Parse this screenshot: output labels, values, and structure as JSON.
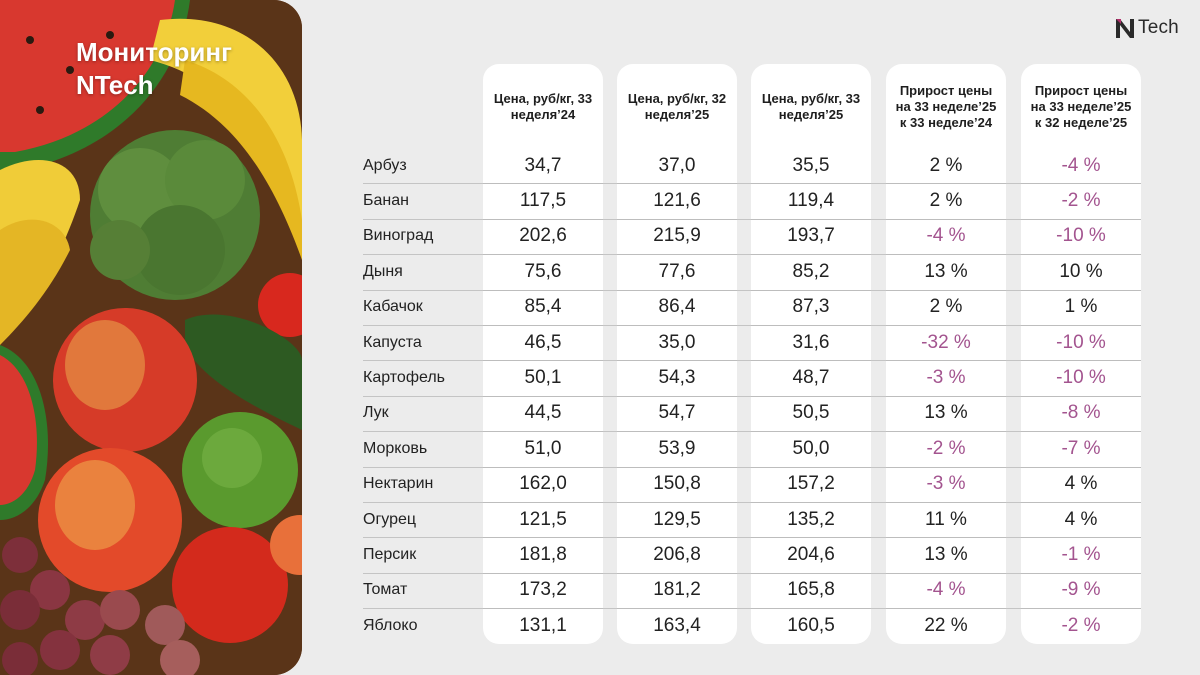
{
  "title": {
    "line1": "Мониторинг",
    "line2": "NTech"
  },
  "logo": {
    "text": "Tech"
  },
  "chart_data": {
    "type": "table",
    "columns": [
      "Цена, руб/кг, 33 неделя’24",
      "Цена, руб/кг, 32 неделя’25",
      "Цена, руб/кг, 33 неделя’25",
      "Прирост цены на 33 неделе’25 к 33 неделе’24",
      "Прирост цены на 33 неделе’25 к 32 неделе’25"
    ],
    "rows": [
      {
        "name": "Арбуз",
        "values": [
          "34,7",
          "37,0",
          "35,5",
          "2 %",
          "-4 %"
        ]
      },
      {
        "name": "Банан",
        "values": [
          "117,5",
          "121,6",
          "119,4",
          "2 %",
          "-2 %"
        ]
      },
      {
        "name": "Виноград",
        "values": [
          "202,6",
          "215,9",
          "193,7",
          "-4 %",
          "-10 %"
        ]
      },
      {
        "name": "Дыня",
        "values": [
          "75,6",
          "77,6",
          "85,2",
          "13 %",
          "10 %"
        ]
      },
      {
        "name": "Кабачок",
        "values": [
          "85,4",
          "86,4",
          "87,3",
          "2 %",
          "1 %"
        ]
      },
      {
        "name": "Капуста",
        "values": [
          "46,5",
          "35,0",
          "31,6",
          "-32 %",
          "-10 %"
        ]
      },
      {
        "name": "Картофель",
        "values": [
          "50,1",
          "54,3",
          "48,7",
          "-3 %",
          "-10 %"
        ]
      },
      {
        "name": "Лук",
        "values": [
          "44,5",
          "54,7",
          "50,5",
          "13 %",
          "-8 %"
        ]
      },
      {
        "name": "Морковь",
        "values": [
          "51,0",
          "53,9",
          "50,0",
          "-2 %",
          "-7 %"
        ]
      },
      {
        "name": "Нектарин",
        "values": [
          "162,0",
          "150,8",
          "157,2",
          "-3 %",
          "4 %"
        ]
      },
      {
        "name": "Огурец",
        "values": [
          "121,5",
          "129,5",
          "135,2",
          "11 %",
          "4 %"
        ]
      },
      {
        "name": "Персик",
        "values": [
          "181,8",
          "206,8",
          "204,6",
          "13 %",
          "-1 %"
        ]
      },
      {
        "name": "Томат",
        "values": [
          "173,2",
          "181,2",
          "165,8",
          "-4 %",
          "-9 %"
        ]
      },
      {
        "name": "Яблоко",
        "values": [
          "131,1",
          "163,4",
          "160,5",
          "22 %",
          "-2 %"
        ]
      }
    ]
  },
  "colors": {
    "negative": "#a3548f",
    "text": "#222222",
    "background": "#ececec",
    "card": "#ffffff"
  }
}
